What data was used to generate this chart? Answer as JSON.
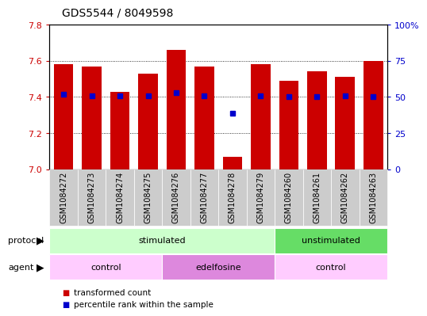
{
  "title": "GDS5544 / 8049598",
  "samples": [
    "GSM1084272",
    "GSM1084273",
    "GSM1084274",
    "GSM1084275",
    "GSM1084276",
    "GSM1084277",
    "GSM1084278",
    "GSM1084279",
    "GSM1084260",
    "GSM1084261",
    "GSM1084262",
    "GSM1084263"
  ],
  "bar_values": [
    7.58,
    7.57,
    7.43,
    7.53,
    7.66,
    7.57,
    7.07,
    7.58,
    7.49,
    7.54,
    7.51,
    7.6
  ],
  "percentile_values": [
    52,
    51,
    51,
    51,
    53,
    51,
    39,
    51,
    50,
    50,
    51,
    50
  ],
  "ylim_left": [
    7.0,
    7.8
  ],
  "ylim_right": [
    0,
    100
  ],
  "yticks_left": [
    7.0,
    7.2,
    7.4,
    7.6,
    7.8
  ],
  "yticks_right": [
    0,
    25,
    50,
    75,
    100
  ],
  "ytick_labels_right": [
    "0",
    "25",
    "50",
    "75",
    "100%"
  ],
  "bar_color": "#cc0000",
  "percentile_color": "#0000cc",
  "bar_width": 0.7,
  "protocol_groups": [
    {
      "label": "stimulated",
      "start": 0,
      "end": 7,
      "color": "#ccffcc"
    },
    {
      "label": "unstimulated",
      "start": 8,
      "end": 11,
      "color": "#66dd66"
    }
  ],
  "agent_groups": [
    {
      "label": "control",
      "start": 0,
      "end": 3,
      "color": "#ffccff"
    },
    {
      "label": "edelfosine",
      "start": 4,
      "end": 7,
      "color": "#dd88dd"
    },
    {
      "label": "control",
      "start": 8,
      "end": 11,
      "color": "#ffccff"
    }
  ],
  "legend_bar_label": "transformed count",
  "legend_pct_label": "percentile rank within the sample",
  "bg_color": "#ffffff",
  "plot_bg_color": "#ffffff",
  "tick_color_left": "#cc0000",
  "tick_color_right": "#0000cc",
  "xtick_bg_color": "#cccccc",
  "title_fontsize": 10,
  "label_fontsize": 8,
  "tick_fontsize": 8,
  "xtick_fontsize": 7
}
